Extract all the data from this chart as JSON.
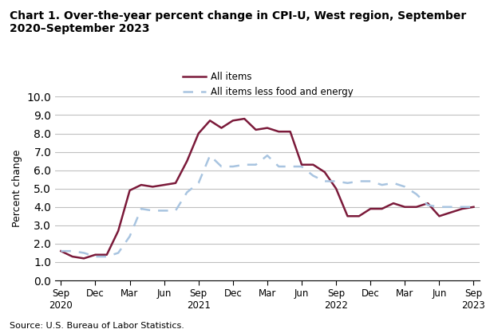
{
  "title": "Chart 1. Over-the-year percent change in CPI-U, West region, September\n2020–September 2023",
  "ylabel": "Percent change",
  "source": "Source: U.S. Bureau of Labor Statistics.",
  "ylim": [
    0.0,
    10.0
  ],
  "yticks": [
    0.0,
    1.0,
    2.0,
    3.0,
    4.0,
    5.0,
    6.0,
    7.0,
    8.0,
    9.0,
    10.0
  ],
  "x_labels": [
    "Sep\n2020",
    "Dec",
    "Mar",
    "Jun",
    "Sep\n2021",
    "Dec",
    "Mar",
    "Jun",
    "Sep\n2022",
    "Dec",
    "Mar",
    "Jun",
    "Sep\n2023"
  ],
  "all_items": [
    1.6,
    1.3,
    1.2,
    1.4,
    1.4,
    2.7,
    4.9,
    5.2,
    5.1,
    5.2,
    5.3,
    6.5,
    8.0,
    8.7,
    8.3,
    8.7,
    8.8,
    8.2,
    8.3,
    8.1,
    8.1,
    6.3,
    6.3,
    5.9,
    5.0,
    3.5,
    3.5,
    3.9,
    3.9,
    4.2,
    4.0,
    4.0,
    4.2,
    3.5,
    3.7,
    3.9,
    4.0
  ],
  "core_items": [
    1.6,
    1.6,
    1.5,
    1.3,
    1.3,
    1.5,
    2.4,
    3.9,
    3.8,
    3.8,
    3.8,
    4.8,
    5.3,
    6.8,
    6.2,
    6.2,
    6.3,
    6.3,
    6.8,
    6.2,
    6.2,
    6.2,
    5.7,
    5.4,
    5.4,
    5.3,
    5.4,
    5.4,
    5.2,
    5.3,
    5.1,
    4.7,
    4.1,
    4.0,
    4.0,
    4.0,
    4.0
  ],
  "all_items_color": "#7b1a3a",
  "core_items_color": "#a8c4e0",
  "background_color": "#ffffff",
  "grid_color": "#c0c0c0"
}
